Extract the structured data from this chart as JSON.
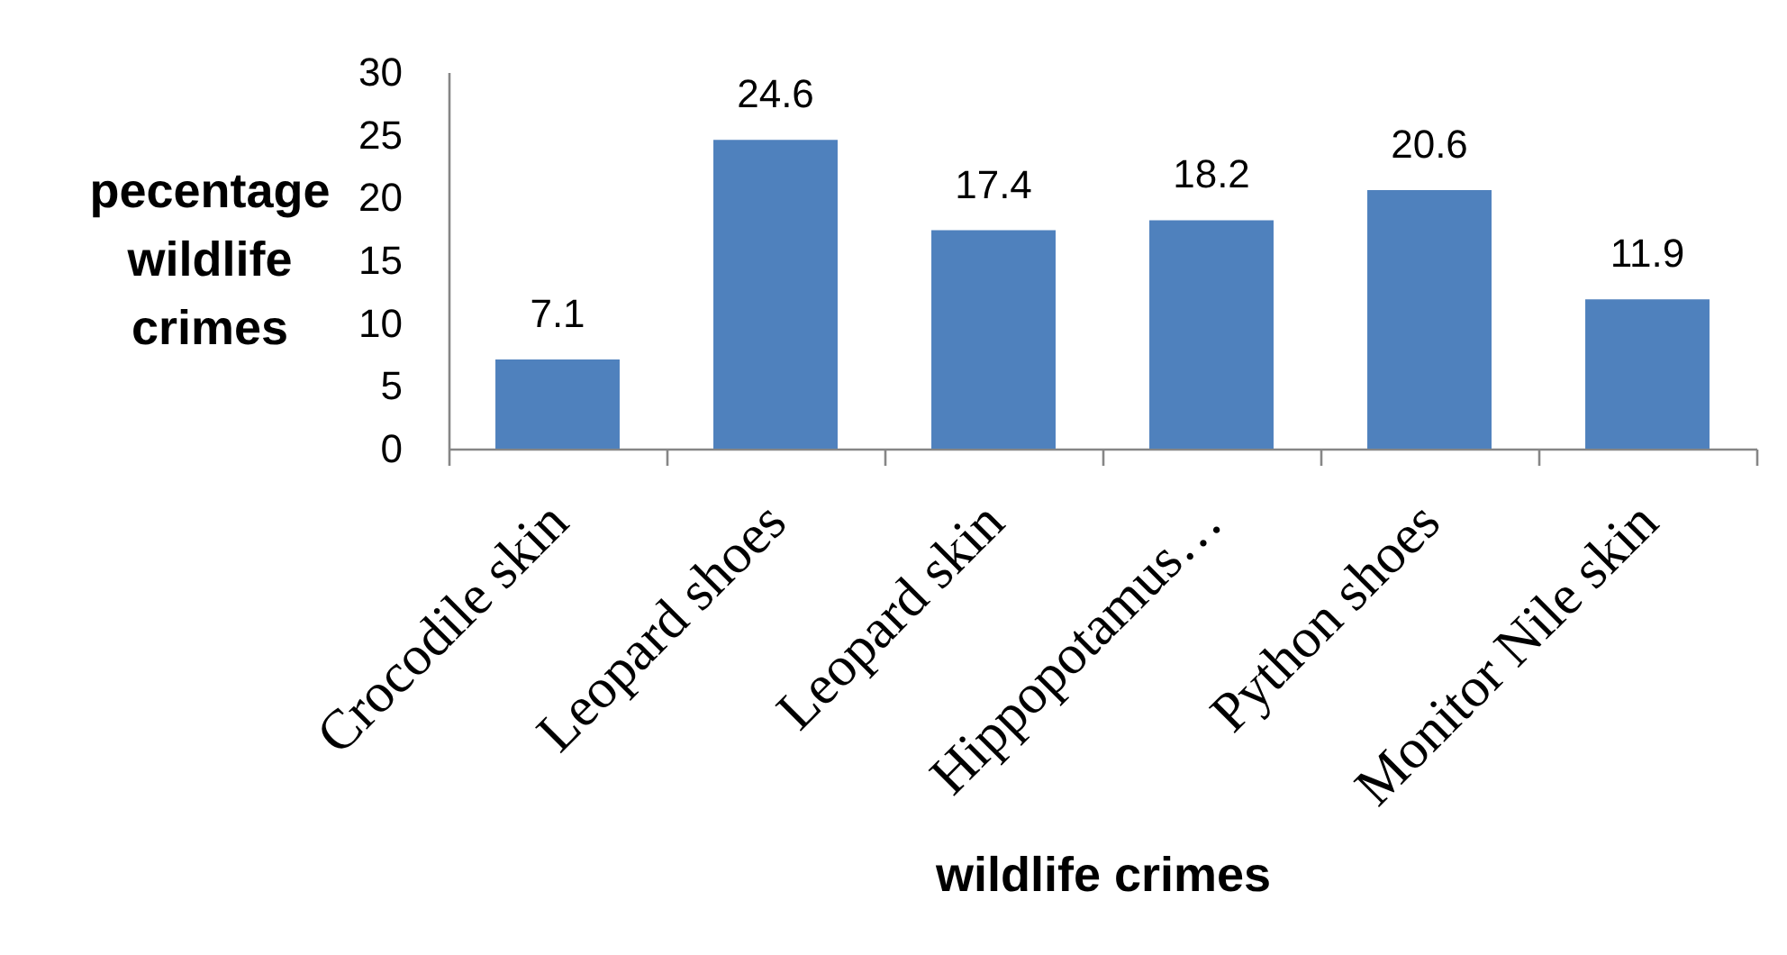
{
  "chart_data": {
    "type": "bar",
    "categories": [
      "Crocodile  skin",
      "Leopard shoes",
      "Leopard skin",
      "Hippopotamus…",
      "Python shoes",
      "Monitor Nile skin"
    ],
    "values": [
      7.1,
      24.6,
      17.4,
      18.2,
      20.6,
      11.9
    ],
    "color": "#4f81bd",
    "xlabel": "wildlife crimes",
    "ylabel": "pecentage wildlife crimes",
    "ylim": [
      0,
      30
    ],
    "yticks": [
      0,
      5,
      10,
      15,
      20,
      25,
      30
    ],
    "data_labels": true,
    "grid": false
  }
}
